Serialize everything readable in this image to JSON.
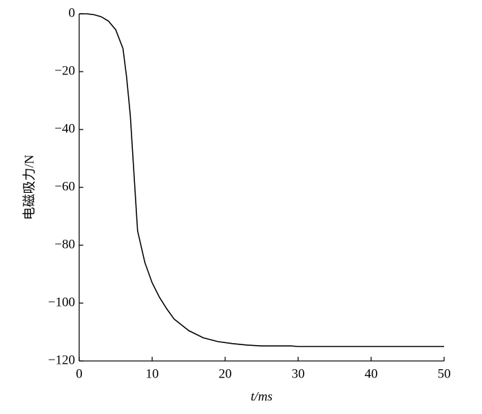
{
  "chart_data": {
    "type": "line",
    "x_label": "t/ms",
    "y_label": "电磁吸力/N",
    "xlim": [
      0,
      50
    ],
    "ylim": [
      -120,
      0
    ],
    "xticks": [
      0,
      10,
      20,
      30,
      40,
      50
    ],
    "yticks": [
      {
        "value": 0,
        "label": "0"
      },
      {
        "value": -20,
        "label": "−20"
      },
      {
        "value": -40,
        "label": "−40"
      },
      {
        "value": -60,
        "label": "−60"
      },
      {
        "value": -80,
        "label": "−80"
      },
      {
        "value": -100,
        "label": "−100"
      },
      {
        "value": -120,
        "label": "−120"
      }
    ],
    "x": [
      0,
      1,
      2,
      3,
      4,
      5,
      6,
      6.5,
      7,
      7.5,
      8,
      9,
      10,
      11,
      12,
      13,
      14,
      15,
      17,
      19,
      21,
      23,
      25,
      29,
      30,
      40,
      50
    ],
    "series": [
      {
        "color": "#000000",
        "values": [
          0,
          0,
          -0.3,
          -1,
          -2.5,
          -5.5,
          -12,
          -22,
          -35,
          -55,
          -75,
          -86,
          -93,
          -98,
          -102,
          -105.5,
          -107.5,
          -109.5,
          -112,
          -113.3,
          -114,
          -114.5,
          -114.8,
          -114.8,
          -115,
          -115,
          -115
        ]
      }
    ]
  }
}
